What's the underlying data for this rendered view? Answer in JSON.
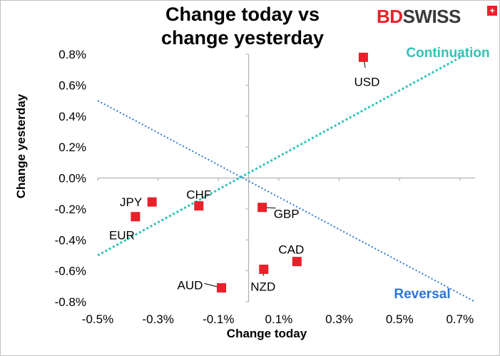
{
  "chart_data": {
    "type": "scatter",
    "title_line1": "Change today vs",
    "title_line2": "change yesterday",
    "xlabel": "Change today",
    "ylabel": "Change yesterday",
    "xlim": [
      -0.5,
      0.75
    ],
    "ylim": [
      -0.8,
      0.8
    ],
    "x_ticks": [
      -0.5,
      -0.3,
      -0.1,
      0.1,
      0.3,
      0.5,
      0.7
    ],
    "x_tick_labels": [
      "-0.5%",
      "-0.3%",
      "-0.1%",
      "0.1%",
      "0.3%",
      "0.5%",
      "0.7%"
    ],
    "y_ticks": [
      0.8,
      0.6,
      0.4,
      0.2,
      0.0,
      -0.2,
      -0.4,
      -0.6,
      -0.8
    ],
    "y_tick_labels": [
      "0.8%",
      "0.6%",
      "0.4%",
      "0.2%",
      "0.0%",
      "-0.2%",
      "-0.4%",
      "-0.6%",
      "-0.8%"
    ],
    "points": [
      {
        "label": "USD",
        "x": 0.38,
        "y": 0.78
      },
      {
        "label": "JPY",
        "x": -0.32,
        "y": -0.155
      },
      {
        "label": "CHF",
        "x": -0.165,
        "y": -0.18
      },
      {
        "label": "EUR",
        "x": -0.375,
        "y": -0.25
      },
      {
        "label": "GBP",
        "x": 0.045,
        "y": -0.19
      },
      {
        "label": "CAD",
        "x": 0.16,
        "y": -0.54
      },
      {
        "label": "NZD",
        "x": 0.05,
        "y": -0.59
      },
      {
        "label": "AUD",
        "x": -0.09,
        "y": -0.71
      }
    ],
    "lines": [
      {
        "name": "Continuation",
        "x0": -0.5,
        "y0": -0.5,
        "x1": 0.72,
        "y1": 0.8,
        "color": "#2ec4b6"
      },
      {
        "name": "Reversal",
        "x0": -0.5,
        "y0": 0.5,
        "x1": 0.75,
        "y1": -0.8,
        "color": "#2e75d6"
      }
    ],
    "marker_color": "#e8212a"
  },
  "brand": {
    "prefix": "BD",
    "suffix": "SWISS",
    "flag": "+"
  }
}
